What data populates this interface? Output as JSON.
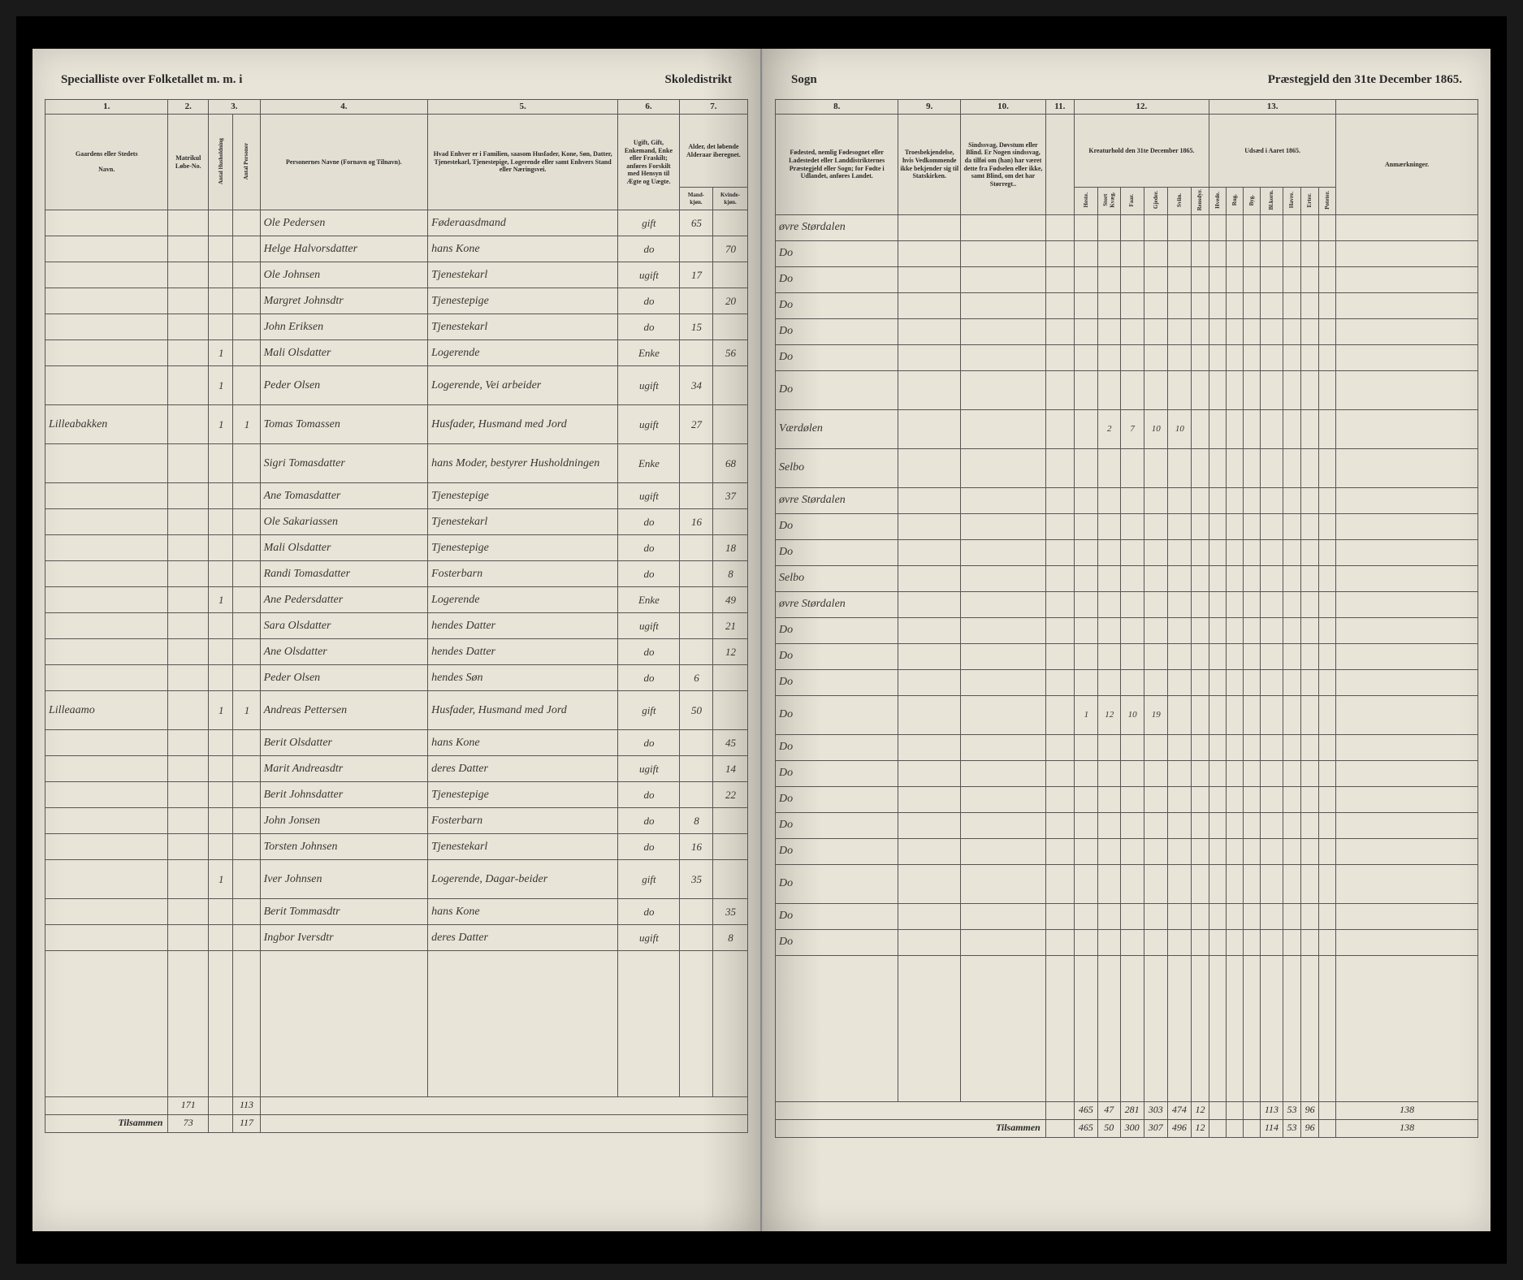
{
  "header": {
    "left_title": "Specialliste over Folketallet m. m. i",
    "left_right": "Skoledistrikt",
    "right_left": "Sogn",
    "right_title": "Præstegjeld den 31te December 1865."
  },
  "columns_left": {
    "c1": "1.",
    "c2": "2.",
    "c3": "3.",
    "c4": "4.",
    "c5": "5.",
    "c6": "6.",
    "c7": "7."
  },
  "columns_right": {
    "c8": "8.",
    "c9": "9.",
    "c10": "10.",
    "c11": "11.",
    "c12": "12.",
    "c13": "13."
  },
  "heads_left": {
    "h1a": "Gaardens eller Stedets",
    "h1b": "Navn.",
    "h2": "Matrikul Løbe-No.",
    "h3a": "",
    "h3b": "",
    "h4": "Personernes Navne (Fornavn og Tilnavn).",
    "h5": "Hvad Enhver er i Familien, saasom Husfader, Kone, Søn, Datter, Tjenestekarl, Tjenestepige, Logerende eller samt Enhvers Stand eller Næringsvei.",
    "h6": "Ugift, Gift, Enkemand, Enke eller Fraskilt; anføres Forskilt med Hensyn til Ægte og Uægte.",
    "h7": "Alder, det løbende Alderaar iberegnet.",
    "h7a": "Mand-kjøn.",
    "h7b": "Kvinde-kjøn."
  },
  "heads_right": {
    "h8": "Fødested, nemlig Fødesognet eller Ladestedet eller Landdistrikternes Præstegjeld eller Sogn; for Fødte i Udlandet, anføres Landet.",
    "h9": "Troesbekjendelse, hvis Vedkommende ikke bekjender sig til Statskirken.",
    "h10": "Sindssvag, Døvstum eller Blind. Er Nogen sindssvag, da tilføi om (han) har været dette fra Fødselen eller ikke, samt Blind, om det har Størregt..",
    "h11": "",
    "h12": "Kreaturhold den 31te December 1865.",
    "h12_sub": [
      "Heste.",
      "Stort Kvæg.",
      "Faar.",
      "Gjeder.",
      "Sviin.",
      "Rensdyr."
    ],
    "h13": "Udsæd i Aaret 1865.",
    "h13_sub": [
      "Hvede.",
      "Rug.",
      "Byg.",
      "Bl.korn.",
      "Havre.",
      "Erter.",
      "Poteter."
    ],
    "anm": "Anmærkninger."
  },
  "rows": [
    {
      "place": "",
      "m": "",
      "h": "",
      "p": "",
      "name": "Ole Pedersen",
      "role": "Føderaasdmand",
      "stat": "gift",
      "ma": "65",
      "fa": "",
      "birth": "øvre Størdalen",
      "k": [
        "",
        "",
        "",
        "",
        "",
        ""
      ],
      "u": [
        "",
        "",
        "",
        "",
        "",
        "",
        ""
      ]
    },
    {
      "place": "",
      "m": "",
      "h": "",
      "p": "",
      "name": "Helge Halvorsdatter",
      "role": "hans Kone",
      "stat": "do",
      "ma": "",
      "fa": "70",
      "birth": "Do",
      "k": [
        "",
        "",
        "",
        "",
        "",
        ""
      ],
      "u": [
        "",
        "",
        "",
        "",
        "",
        "",
        ""
      ]
    },
    {
      "place": "",
      "m": "",
      "h": "",
      "p": "",
      "name": "Ole Johnsen",
      "role": "Tjenestekarl",
      "stat": "ugift",
      "ma": "17",
      "fa": "",
      "birth": "Do",
      "k": [
        "",
        "",
        "",
        "",
        "",
        ""
      ],
      "u": [
        "",
        "",
        "",
        "",
        "",
        "",
        ""
      ]
    },
    {
      "place": "",
      "m": "",
      "h": "",
      "p": "",
      "name": "Margret Johnsdtr",
      "role": "Tjenestepige",
      "stat": "do",
      "ma": "",
      "fa": "20",
      "birth": "Do",
      "k": [
        "",
        "",
        "",
        "",
        "",
        ""
      ],
      "u": [
        "",
        "",
        "",
        "",
        "",
        "",
        ""
      ]
    },
    {
      "place": "",
      "m": "",
      "h": "",
      "p": "",
      "name": "John Eriksen",
      "role": "Tjenestekarl",
      "stat": "do",
      "ma": "15",
      "fa": "",
      "birth": "Do",
      "k": [
        "",
        "",
        "",
        "",
        "",
        ""
      ],
      "u": [
        "",
        "",
        "",
        "",
        "",
        "",
        ""
      ]
    },
    {
      "place": "",
      "m": "",
      "h": "1",
      "p": "",
      "name": "Mali Olsdatter",
      "role": "Logerende",
      "stat": "Enke",
      "ma": "",
      "fa": "56",
      "birth": "Do",
      "k": [
        "",
        "",
        "",
        "",
        "",
        ""
      ],
      "u": [
        "",
        "",
        "",
        "",
        "",
        "",
        ""
      ]
    },
    {
      "place": "",
      "m": "",
      "h": "1",
      "p": "",
      "name": "Peder Olsen",
      "role": "Logerende, Vei arbeider",
      "stat": "ugift",
      "ma": "34",
      "fa": "",
      "birth": "Do",
      "k": [
        "",
        "",
        "",
        "",
        "",
        ""
      ],
      "u": [
        "",
        "",
        "",
        "",
        "",
        "",
        ""
      ],
      "tall": true
    },
    {
      "place": "Lilleabakken",
      "m": "",
      "h": "1",
      "p": "1",
      "name": "Tomas Tomassen",
      "role": "Husfader, Husmand med Jord",
      "stat": "ugift",
      "ma": "27",
      "fa": "",
      "birth": "Værdølen",
      "k": [
        "",
        "2",
        "7",
        "10",
        "10",
        ""
      ],
      "u": [
        "",
        "",
        "",
        "",
        "",
        "",
        ""
      ],
      "tall": true
    },
    {
      "place": "",
      "m": "",
      "h": "",
      "p": "",
      "name": "Sigri Tomasdatter",
      "role": "hans Moder, bestyrer Husholdningen",
      "stat": "Enke",
      "ma": "",
      "fa": "68",
      "birth": "Selbo",
      "k": [
        "",
        "",
        "",
        "",
        "",
        ""
      ],
      "u": [
        "",
        "",
        "",
        "",
        "",
        "",
        ""
      ],
      "tall": true
    },
    {
      "place": "",
      "m": "",
      "h": "",
      "p": "",
      "name": "Ane Tomasdatter",
      "role": "Tjenestepige",
      "stat": "ugift",
      "ma": "",
      "fa": "37",
      "birth": "øvre Størdalen",
      "k": [
        "",
        "",
        "",
        "",
        "",
        ""
      ],
      "u": [
        "",
        "",
        "",
        "",
        "",
        "",
        ""
      ]
    },
    {
      "place": "",
      "m": "",
      "h": "",
      "p": "",
      "name": "Ole Sakariassen",
      "role": "Tjenestekarl",
      "stat": "do",
      "ma": "16",
      "fa": "",
      "birth": "Do",
      "k": [
        "",
        "",
        "",
        "",
        "",
        ""
      ],
      "u": [
        "",
        "",
        "",
        "",
        "",
        "",
        ""
      ]
    },
    {
      "place": "",
      "m": "",
      "h": "",
      "p": "",
      "name": "Mali Olsdatter",
      "role": "Tjenestepige",
      "stat": "do",
      "ma": "",
      "fa": "18",
      "birth": "Do",
      "k": [
        "",
        "",
        "",
        "",
        "",
        ""
      ],
      "u": [
        "",
        "",
        "",
        "",
        "",
        "",
        ""
      ]
    },
    {
      "place": "",
      "m": "",
      "h": "",
      "p": "",
      "name": "Randi Tomasdatter",
      "role": "Fosterbarn",
      "stat": "do",
      "ma": "",
      "fa": "8",
      "birth": "Selbo",
      "k": [
        "",
        "",
        "",
        "",
        "",
        ""
      ],
      "u": [
        "",
        "",
        "",
        "",
        "",
        "",
        ""
      ]
    },
    {
      "place": "",
      "m": "",
      "h": "1",
      "p": "",
      "name": "Ane Pedersdatter",
      "role": "Logerende",
      "stat": "Enke",
      "ma": "",
      "fa": "49",
      "birth": "øvre Størdalen",
      "k": [
        "",
        "",
        "",
        "",
        "",
        ""
      ],
      "u": [
        "",
        "",
        "",
        "",
        "",
        "",
        ""
      ]
    },
    {
      "place": "",
      "m": "",
      "h": "",
      "p": "",
      "name": "Sara Olsdatter",
      "role": "hendes Datter",
      "stat": "ugift",
      "ma": "",
      "fa": "21",
      "birth": "Do",
      "k": [
        "",
        "",
        "",
        "",
        "",
        ""
      ],
      "u": [
        "",
        "",
        "",
        "",
        "",
        "",
        ""
      ]
    },
    {
      "place": "",
      "m": "",
      "h": "",
      "p": "",
      "name": "Ane Olsdatter",
      "role": "hendes Datter",
      "stat": "do",
      "ma": "",
      "fa": "12",
      "birth": "Do",
      "k": [
        "",
        "",
        "",
        "",
        "",
        ""
      ],
      "u": [
        "",
        "",
        "",
        "",
        "",
        "",
        ""
      ]
    },
    {
      "place": "",
      "m": "",
      "h": "",
      "p": "",
      "name": "Peder Olsen",
      "role": "hendes Søn",
      "stat": "do",
      "ma": "6",
      "fa": "",
      "birth": "Do",
      "k": [
        "",
        "",
        "",
        "",
        "",
        ""
      ],
      "u": [
        "",
        "",
        "",
        "",
        "",
        "",
        ""
      ]
    },
    {
      "place": "Lilleaamo",
      "m": "",
      "h": "1",
      "p": "1",
      "name": "Andreas Pettersen",
      "role": "Husfader, Husmand med Jord",
      "stat": "gift",
      "ma": "50",
      "fa": "",
      "birth": "Do",
      "k": [
        "1",
        "12",
        "10",
        "19",
        "",
        ""
      ],
      "u": [
        "",
        "",
        "",
        "",
        "",
        "",
        ""
      ],
      "tall": true
    },
    {
      "place": "",
      "m": "",
      "h": "",
      "p": "",
      "name": "Berit Olsdatter",
      "role": "hans Kone",
      "stat": "do",
      "ma": "",
      "fa": "45",
      "birth": "Do",
      "k": [
        "",
        "",
        "",
        "",
        "",
        ""
      ],
      "u": [
        "",
        "",
        "",
        "",
        "",
        "",
        ""
      ]
    },
    {
      "place": "",
      "m": "",
      "h": "",
      "p": "",
      "name": "Marit Andreasdtr",
      "role": "deres Datter",
      "stat": "ugift",
      "ma": "",
      "fa": "14",
      "birth": "Do",
      "k": [
        "",
        "",
        "",
        "",
        "",
        ""
      ],
      "u": [
        "",
        "",
        "",
        "",
        "",
        "",
        ""
      ]
    },
    {
      "place": "",
      "m": "",
      "h": "",
      "p": "",
      "name": "Berit Johnsdatter",
      "role": "Tjenestepige",
      "stat": "do",
      "ma": "",
      "fa": "22",
      "birth": "Do",
      "k": [
        "",
        "",
        "",
        "",
        "",
        ""
      ],
      "u": [
        "",
        "",
        "",
        "",
        "",
        "",
        ""
      ]
    },
    {
      "place": "",
      "m": "",
      "h": "",
      "p": "",
      "name": "John Jonsen",
      "role": "Fosterbarn",
      "stat": "do",
      "ma": "8",
      "fa": "",
      "birth": "Do",
      "k": [
        "",
        "",
        "",
        "",
        "",
        ""
      ],
      "u": [
        "",
        "",
        "",
        "",
        "",
        "",
        ""
      ]
    },
    {
      "place": "",
      "m": "",
      "h": "",
      "p": "",
      "name": "Torsten Johnsen",
      "role": "Tjenestekarl",
      "stat": "do",
      "ma": "16",
      "fa": "",
      "birth": "Do",
      "k": [
        "",
        "",
        "",
        "",
        "",
        ""
      ],
      "u": [
        "",
        "",
        "",
        "",
        "",
        "",
        ""
      ]
    },
    {
      "place": "",
      "m": "",
      "h": "1",
      "p": "",
      "name": "Iver Johnsen",
      "role": "Logerende, Dagar-beider",
      "stat": "gift",
      "ma": "35",
      "fa": "",
      "birth": "Do",
      "k": [
        "",
        "",
        "",
        "",
        "",
        ""
      ],
      "u": [
        "",
        "",
        "",
        "",
        "",
        "",
        ""
      ],
      "tall": true
    },
    {
      "place": "",
      "m": "",
      "h": "",
      "p": "",
      "name": "Berit Tommasdtr",
      "role": "hans Kone",
      "stat": "do",
      "ma": "",
      "fa": "35",
      "birth": "Do",
      "k": [
        "",
        "",
        "",
        "",
        "",
        ""
      ],
      "u": [
        "",
        "",
        "",
        "",
        "",
        "",
        ""
      ]
    },
    {
      "place": "",
      "m": "",
      "h": "",
      "p": "",
      "name": "Ingbor Iversdtr",
      "role": "deres Datter",
      "stat": "ugift",
      "ma": "",
      "fa": "8",
      "birth": "Do",
      "k": [
        "",
        "",
        "",
        "",
        "",
        ""
      ],
      "u": [
        "",
        "",
        "",
        "",
        "",
        "",
        ""
      ]
    }
  ],
  "totals": {
    "left": [
      {
        "c2": "171",
        "c3": "",
        "c4": "113"
      },
      {
        "c2": "73",
        "c3": "",
        "c4": "117"
      }
    ],
    "right": [
      {
        "vals": [
          "465",
          "47",
          "281",
          "303",
          "474",
          "12",
          "",
          "",
          "",
          "113",
          "53",
          "96",
          "",
          "138",
          ""
        ]
      },
      {
        "vals": [
          "465",
          "50",
          "300",
          "307",
          "496",
          "12",
          "",
          "",
          "",
          "114",
          "53",
          "96",
          "",
          "138",
          ""
        ]
      }
    ],
    "tilsammen_label": "Tilsammen"
  },
  "colors": {
    "paper": "#e8e4d8",
    "ink": "#2a2a2a",
    "handwriting": "#3a3530",
    "rule": "#555555"
  }
}
